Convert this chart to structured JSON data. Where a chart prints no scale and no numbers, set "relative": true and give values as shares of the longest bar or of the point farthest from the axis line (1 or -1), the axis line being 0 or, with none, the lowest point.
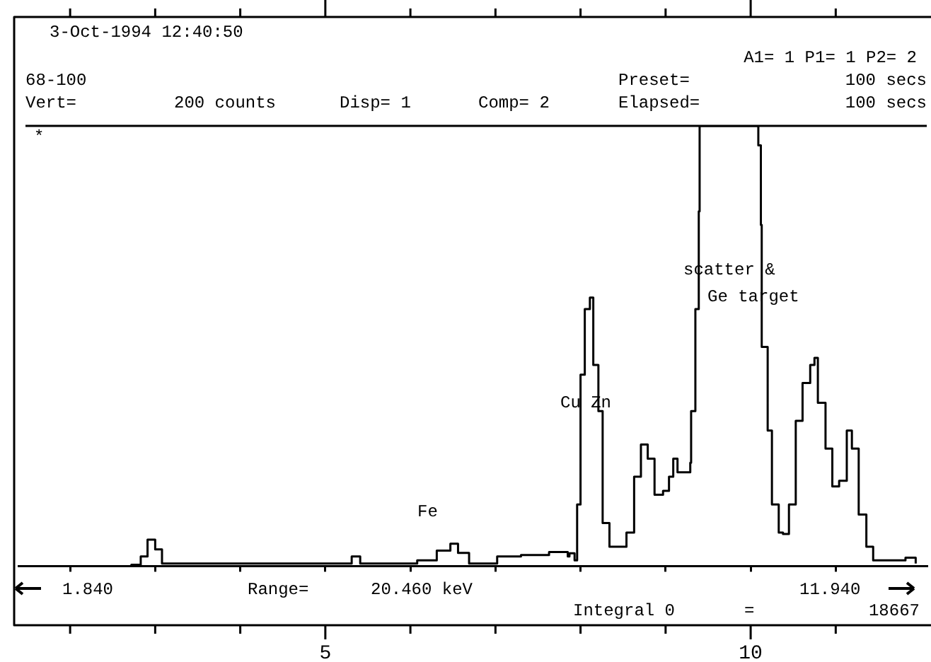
{
  "chart_data": {
    "type": "step",
    "relative": true,
    "color": "#000000",
    "x": [
      1.72,
      2.72,
      2.83,
      2.91,
      3.0,
      3.08,
      3.99,
      5.31,
      5.41,
      6.08,
      6.31,
      6.47,
      6.56,
      6.69,
      7.02,
      7.3,
      7.63,
      7.85,
      7.87,
      7.93,
      7.96,
      8.0,
      8.05,
      8.11,
      8.15,
      8.21,
      8.26,
      8.34,
      8.48,
      8.54,
      8.63,
      8.71,
      8.79,
      8.87,
      8.97,
      9.04,
      9.09,
      9.14,
      9.29,
      9.3,
      9.35,
      9.39,
      9.4,
      10.05,
      10.09,
      10.12,
      10.13,
      10.2,
      10.25,
      10.33,
      10.38,
      10.45,
      10.53,
      10.61,
      10.7,
      10.75,
      10.79,
      10.88,
      10.96,
      11.04,
      11.13,
      11.19,
      11.27,
      11.36,
      11.44,
      11.71,
      11.82,
      11.94
    ],
    "values": [
      0,
      0.003,
      0.022,
      0.06,
      0.038,
      0.006,
      0.006,
      0.022,
      0.006,
      0.013,
      0.035,
      0.051,
      0.03,
      0.006,
      0.022,
      0.025,
      0.032,
      0.022,
      0.029,
      0.013,
      0.14,
      0.435,
      0.584,
      0.61,
      0.457,
      0.352,
      0.098,
      0.044,
      0.044,
      0.076,
      0.203,
      0.276,
      0.244,
      0.162,
      0.171,
      0.203,
      0.244,
      0.213,
      0.235,
      0.352,
      0.584,
      0.806,
      1,
      1,
      0.956,
      0.775,
      0.498,
      0.308,
      0.14,
      0.076,
      0.073,
      0.14,
      0.33,
      0.416,
      0.457,
      0.473,
      0.371,
      0.267,
      0.181,
      0.194,
      0.308,
      0.267,
      0.117,
      0.044,
      0.013,
      0.013,
      0.019,
      0.006
    ],
    "xlim": [
      1.4,
      12.07
    ],
    "xticks": [
      {
        "value": 2,
        "label": null
      },
      {
        "value": 3,
        "label": null
      },
      {
        "value": 4,
        "label": null
      },
      5,
      {
        "value": 6,
        "label": null
      },
      {
        "value": 7,
        "label": null
      },
      {
        "value": 8,
        "label": null
      },
      {
        "value": 9,
        "label": null
      },
      10,
      {
        "value": 11,
        "label": null
      }
    ],
    "grid": false,
    "legend": false,
    "marker": "none",
    "line_style": "solid",
    "annotations": [
      "3-Oct-1994 12:40:50",
      "A1= 1 P1= 1 P2= 2",
      "68-100",
      "Preset=",
      "100 secs",
      "Vert=",
      "200 counts",
      "Disp= 1",
      "Comp= 2",
      "Elapsed=",
      "100 secs",
      "*",
      "1.840",
      "Range=",
      "20.460 keV",
      "11.940",
      "Integral 0",
      "=",
      "18667",
      "Fe",
      "Cu Zn",
      "scatter &",
      "Ge target"
    ]
  }
}
